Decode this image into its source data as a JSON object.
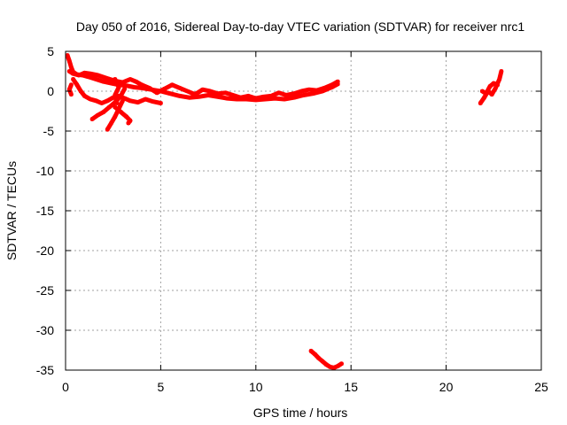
{
  "chart_data": {
    "type": "scatter",
    "title": "Day 050 of 2016, Sidereal Day-to-day VTEC variation (SDTVAR) for receiver nrc1",
    "xlabel": "GPS time / hours",
    "ylabel": "SDTVAR / TECUs",
    "xlim": [
      0,
      25
    ],
    "ylim": [
      -35,
      5
    ],
    "xticks": [
      0,
      5,
      10,
      15,
      20,
      25
    ],
    "yticks": [
      -35,
      -30,
      -25,
      -20,
      -15,
      -10,
      -5,
      0,
      5
    ],
    "grid": true,
    "point_color": "#ff0000",
    "grid_color": "#a0a0a0",
    "series": [
      {
        "name": "trace-1",
        "points": [
          [
            0.1,
            4.5
          ],
          [
            0.2,
            3.8
          ],
          [
            0.3,
            3.0
          ],
          [
            0.4,
            2.4
          ],
          [
            0.6,
            2.1
          ],
          [
            0.9,
            2.0
          ],
          [
            1.2,
            1.8
          ],
          [
            1.6,
            1.5
          ],
          [
            2.0,
            1.2
          ],
          [
            2.4,
            1.0
          ],
          [
            2.8,
            0.8
          ],
          [
            3.2,
            0.7
          ],
          [
            3.6,
            0.5
          ],
          [
            4.0,
            0.4
          ],
          [
            4.5,
            0.2
          ],
          [
            5.0,
            0.0
          ],
          [
            5.5,
            -0.3
          ],
          [
            6.0,
            -0.6
          ],
          [
            6.5,
            -0.8
          ],
          [
            7.0,
            -0.7
          ],
          [
            7.5,
            -0.5
          ],
          [
            8.0,
            -0.7
          ],
          [
            8.5,
            -0.9
          ],
          [
            9.0,
            -1.0
          ],
          [
            9.5,
            -1.0
          ],
          [
            10.0,
            -1.1
          ],
          [
            10.5,
            -1.0
          ],
          [
            11.0,
            -0.9
          ],
          [
            11.5,
            -1.0
          ],
          [
            12.0,
            -0.8
          ],
          [
            12.5,
            -0.5
          ],
          [
            13.0,
            -0.3
          ],
          [
            13.5,
            0.0
          ],
          [
            14.0,
            0.5
          ],
          [
            14.3,
            0.9
          ]
        ]
      },
      {
        "name": "trace-2",
        "points": [
          [
            0.2,
            2.5
          ],
          [
            0.4,
            2.2
          ],
          [
            0.7,
            2.0
          ],
          [
            1.0,
            2.3
          ],
          [
            1.3,
            2.2
          ],
          [
            1.7,
            2.0
          ],
          [
            2.2,
            1.6
          ],
          [
            2.6,
            1.3
          ],
          [
            3.0,
            1.1
          ],
          [
            3.4,
            1.5
          ],
          [
            3.7,
            1.2
          ],
          [
            4.0,
            0.8
          ],
          [
            4.4,
            0.4
          ],
          [
            4.8,
            -0.2
          ],
          [
            5.2,
            0.3
          ],
          [
            5.6,
            0.8
          ],
          [
            6.0,
            0.4
          ],
          [
            6.4,
            0.0
          ],
          [
            6.8,
            -0.4
          ],
          [
            7.2,
            0.2
          ],
          [
            7.6,
            0.0
          ],
          [
            8.0,
            -0.3
          ],
          [
            8.4,
            -0.2
          ],
          [
            8.8,
            -0.5
          ],
          [
            9.2,
            -0.8
          ],
          [
            9.6,
            -0.6
          ],
          [
            10.0,
            -0.9
          ],
          [
            10.4,
            -0.7
          ],
          [
            10.8,
            -0.6
          ],
          [
            11.2,
            -0.2
          ],
          [
            11.6,
            -0.5
          ],
          [
            12.0,
            -0.3
          ],
          [
            12.4,
            0.0
          ],
          [
            12.8,
            0.2
          ],
          [
            13.2,
            0.1
          ],
          [
            13.6,
            0.4
          ],
          [
            14.0,
            0.8
          ],
          [
            14.3,
            1.2
          ]
        ]
      },
      {
        "name": "trace-3",
        "points": [
          [
            0.4,
            1.5
          ],
          [
            0.6,
            0.8
          ],
          [
            0.8,
            0.0
          ],
          [
            1.0,
            -0.6
          ],
          [
            1.3,
            -1.0
          ],
          [
            1.6,
            -1.2
          ],
          [
            1.9,
            -1.5
          ],
          [
            2.2,
            -1.2
          ],
          [
            2.5,
            -0.8
          ],
          [
            2.8,
            -0.6
          ],
          [
            3.1,
            -0.9
          ],
          [
            3.4,
            -1.2
          ],
          [
            3.8,
            -1.4
          ],
          [
            4.2,
            -1.0
          ],
          [
            4.6,
            -1.3
          ],
          [
            5.0,
            -1.5
          ]
        ]
      },
      {
        "name": "trace-4",
        "points": [
          [
            0.3,
            -0.4
          ],
          [
            0.2,
            0.2
          ],
          [
            0.3,
            0.8
          ]
        ]
      },
      {
        "name": "trace-5",
        "points": [
          [
            1.4,
            -3.5
          ],
          [
            1.7,
            -3.0
          ],
          [
            2.0,
            -2.6
          ],
          [
            2.3,
            -2.0
          ],
          [
            2.6,
            -1.4
          ],
          [
            2.9,
            -0.6
          ],
          [
            3.1,
            0.3
          ]
        ]
      },
      {
        "name": "trace-6",
        "points": [
          [
            2.2,
            -4.8
          ],
          [
            2.4,
            -4.0
          ],
          [
            2.6,
            -3.2
          ],
          [
            2.8,
            -2.2
          ],
          [
            3.0,
            -1.2
          ]
        ]
      },
      {
        "name": "trace-7",
        "points": [
          [
            2.6,
            -2.0
          ],
          [
            2.9,
            -2.6
          ],
          [
            3.2,
            -3.2
          ],
          [
            3.4,
            -3.7
          ],
          [
            3.3,
            -4.0
          ]
        ]
      },
      {
        "name": "trace-8",
        "points": [
          [
            2.6,
            1.5
          ],
          [
            2.8,
            0.5
          ],
          [
            2.6,
            -0.5
          ],
          [
            2.7,
            -1.5
          ]
        ]
      },
      {
        "name": "trace-9",
        "points": [
          [
            21.8,
            -1.5
          ],
          [
            22.0,
            -0.8
          ],
          [
            22.2,
            0.0
          ],
          [
            22.4,
            -0.4
          ],
          [
            22.6,
            0.4
          ],
          [
            22.8,
            1.5
          ],
          [
            22.9,
            2.5
          ]
        ]
      },
      {
        "name": "trace-10",
        "points": [
          [
            21.9,
            0.0
          ],
          [
            22.1,
            -0.3
          ],
          [
            22.3,
            0.6
          ],
          [
            22.5,
            1.0
          ],
          [
            22.7,
            0.8
          ]
        ]
      },
      {
        "name": "trace-11",
        "points": [
          [
            12.9,
            -32.6
          ],
          [
            13.1,
            -33.0
          ],
          [
            13.3,
            -33.5
          ],
          [
            13.5,
            -33.9
          ],
          [
            13.7,
            -34.3
          ],
          [
            13.9,
            -34.6
          ],
          [
            14.1,
            -34.7
          ],
          [
            14.3,
            -34.5
          ],
          [
            14.5,
            -34.2
          ]
        ]
      }
    ]
  }
}
